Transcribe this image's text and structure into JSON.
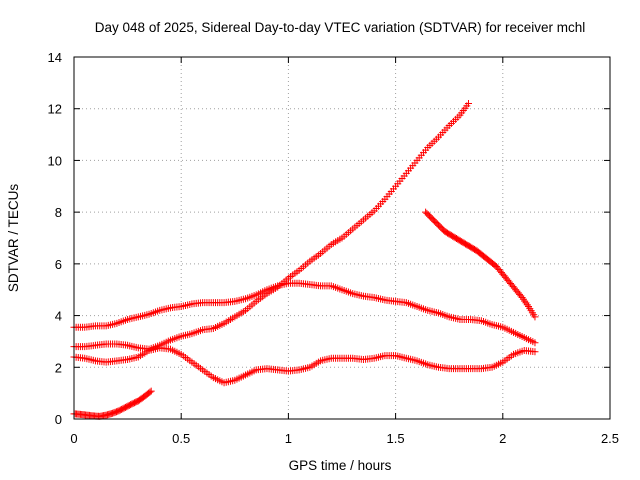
{
  "chart_data": {
    "type": "scatter",
    "title": "Day 048 of 2025, Sidereal Day-to-day VTEC variation (SDTVAR) for receiver mchl",
    "xlabel": "GPS time / hours",
    "ylabel": "SDTVAR / TECUs",
    "xlim": [
      0,
      2.5
    ],
    "ylim": [
      0,
      14
    ],
    "xticks": [
      "0",
      "0.5",
      "1",
      "1.5",
      "2",
      "2.5"
    ],
    "xtick_values": [
      0,
      0.5,
      1,
      1.5,
      2,
      2.5
    ],
    "yticks": [
      "0",
      "2",
      "4",
      "6",
      "8",
      "10",
      "12",
      "14"
    ],
    "ytick_values": [
      0,
      2,
      4,
      6,
      8,
      10,
      12,
      14
    ],
    "grid": true,
    "marker": "plus",
    "color": "#ff0000",
    "series": [
      {
        "name": "trace-a",
        "x": [
          0,
          0.05,
          0.1,
          0.15,
          0.2,
          0.25,
          0.3,
          0.35,
          0.4,
          0.45,
          0.5,
          0.55,
          0.6,
          0.65,
          0.7,
          0.75,
          0.8,
          0.85,
          0.9,
          0.95,
          1.0,
          1.05,
          1.1,
          1.15,
          1.2,
          1.25,
          1.3,
          1.35,
          1.4,
          1.45,
          1.5,
          1.55,
          1.6,
          1.65,
          1.7,
          1.75,
          1.8,
          1.85,
          1.9,
          1.95,
          2.0,
          2.05,
          2.1,
          2.15
        ],
        "y": [
          3.55,
          3.55,
          3.6,
          3.6,
          3.7,
          3.85,
          3.95,
          4.05,
          4.2,
          4.3,
          4.35,
          4.45,
          4.5,
          4.5,
          4.5,
          4.55,
          4.65,
          4.8,
          5.0,
          5.15,
          5.25,
          5.25,
          5.2,
          5.15,
          5.15,
          5.0,
          4.85,
          4.75,
          4.7,
          4.6,
          4.55,
          4.5,
          4.35,
          4.2,
          4.1,
          3.95,
          3.85,
          3.85,
          3.8,
          3.65,
          3.55,
          3.35,
          3.15,
          2.95
        ]
      },
      {
        "name": "trace-b",
        "x": [
          0,
          0.05,
          0.1,
          0.15,
          0.2,
          0.25,
          0.3,
          0.35,
          0.4,
          0.45,
          0.5,
          0.55,
          0.6,
          0.65,
          0.7,
          0.75,
          0.8,
          0.85,
          0.9,
          0.95,
          1.0,
          1.05,
          1.1,
          1.15,
          1.2,
          1.25,
          1.3,
          1.35,
          1.4,
          1.45,
          1.5,
          1.55,
          1.6,
          1.65,
          1.7,
          1.75,
          1.8,
          1.84
        ],
        "y": [
          2.8,
          2.8,
          2.85,
          2.9,
          2.9,
          2.85,
          2.75,
          2.7,
          2.85,
          3.05,
          3.2,
          3.3,
          3.45,
          3.5,
          3.7,
          3.95,
          4.2,
          4.55,
          4.85,
          5.1,
          5.45,
          5.75,
          6.1,
          6.4,
          6.75,
          7.0,
          7.35,
          7.7,
          8.05,
          8.5,
          9.0,
          9.5,
          10.0,
          10.5,
          10.9,
          11.35,
          11.75,
          12.2
        ]
      },
      {
        "name": "trace-c",
        "x": [
          0,
          0.05,
          0.1,
          0.15,
          0.2,
          0.25,
          0.3,
          0.35,
          0.4,
          0.45,
          0.5,
          0.55,
          0.6,
          0.65,
          0.7,
          0.75,
          0.8,
          0.85,
          0.9,
          0.95,
          1.0,
          1.05,
          1.1,
          1.15,
          1.2,
          1.25,
          1.3,
          1.35,
          1.4,
          1.45,
          1.5,
          1.55,
          1.6,
          1.65,
          1.7,
          1.75,
          1.8,
          1.85,
          1.9,
          1.95,
          2.0,
          2.05,
          2.1,
          2.15
        ],
        "y": [
          2.4,
          2.35,
          2.25,
          2.2,
          2.25,
          2.3,
          2.4,
          2.65,
          2.75,
          2.7,
          2.5,
          2.2,
          1.9,
          1.6,
          1.4,
          1.5,
          1.7,
          1.9,
          1.95,
          1.9,
          1.85,
          1.9,
          2.0,
          2.25,
          2.35,
          2.35,
          2.35,
          2.3,
          2.35,
          2.45,
          2.45,
          2.35,
          2.25,
          2.1,
          2.0,
          1.95,
          1.95,
          1.95,
          1.95,
          2.0,
          2.2,
          2.5,
          2.65,
          2.6
        ]
      },
      {
        "name": "trace-d",
        "x": [
          1.64,
          1.67,
          1.7,
          1.73,
          1.76,
          1.79,
          1.82,
          1.85,
          1.88,
          1.91,
          1.94,
          1.97,
          2.0,
          2.03,
          2.06,
          2.09,
          2.12,
          2.15
        ],
        "y": [
          8.0,
          7.75,
          7.5,
          7.25,
          7.1,
          6.95,
          6.8,
          6.65,
          6.5,
          6.3,
          6.1,
          5.9,
          5.6,
          5.3,
          5.0,
          4.7,
          4.35,
          3.95
        ]
      },
      {
        "name": "trace-e",
        "x": [
          0,
          0.03,
          0.06,
          0.09,
          0.12,
          0.15,
          0.18,
          0.21,
          0.24,
          0.27,
          0.3,
          0.33,
          0.36
        ],
        "y": [
          0.2,
          0.18,
          0.15,
          0.12,
          0.1,
          0.15,
          0.22,
          0.32,
          0.45,
          0.58,
          0.7,
          0.88,
          1.08
        ]
      }
    ]
  }
}
